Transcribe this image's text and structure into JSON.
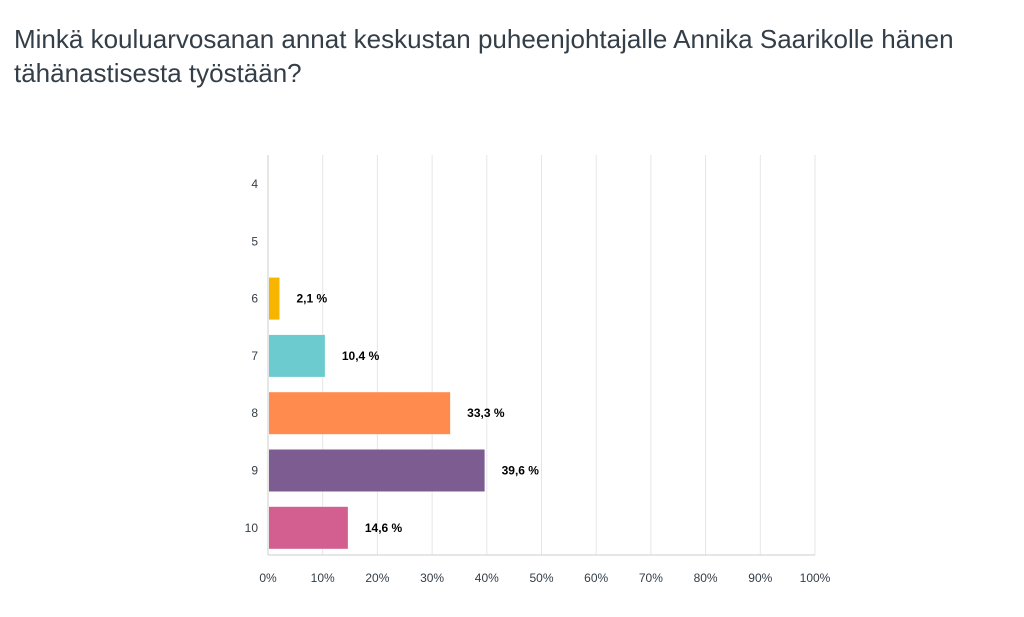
{
  "chart_data": {
    "type": "bar",
    "orientation": "horizontal",
    "title": "Minkä kouluarvosanan annat keskustan puheenjohtajalle Annika Saarikolle hänen tähänastisesta työstään?",
    "categories": [
      "4",
      "5",
      "6",
      "7",
      "8",
      "9",
      "10"
    ],
    "values": [
      0,
      0,
      2.1,
      10.4,
      33.3,
      39.6,
      14.6
    ],
    "value_labels": [
      "",
      "",
      "2,1 %",
      "10,4 %",
      "33,3 %",
      "39,6 %",
      "14,6 %"
    ],
    "colors": [
      "#2dccd3",
      "#f0b400",
      "#f7b500",
      "#6bcbcf",
      "#ff8b4f",
      "#7d5d91",
      "#d25f90"
    ],
    "xlim": [
      0,
      100
    ],
    "xticks": [
      0,
      10,
      20,
      30,
      40,
      50,
      60,
      70,
      80,
      90,
      100
    ],
    "xtick_labels": [
      "0%",
      "10%",
      "20%",
      "30%",
      "40%",
      "50%",
      "60%",
      "70%",
      "80%",
      "90%",
      "100%"
    ],
    "grid": true,
    "gridline_color": "#e6e6e6",
    "axis_color": "#cccccc",
    "text_color": "#333e48"
  }
}
